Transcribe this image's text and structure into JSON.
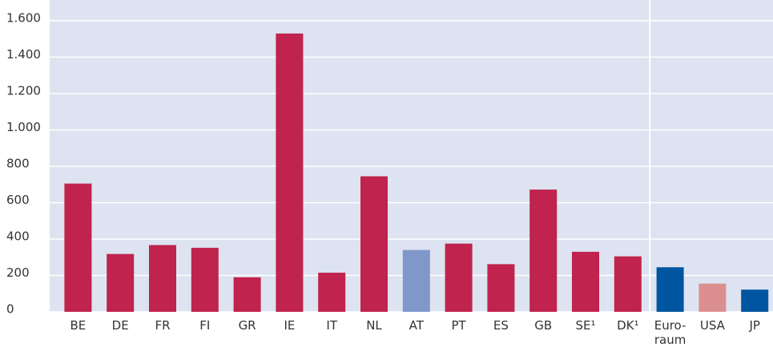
{
  "chart_data": {
    "type": "bar",
    "categories": [
      "BE",
      "DE",
      "FR",
      "FI",
      "GR",
      "IE",
      "IT",
      "NL",
      "AT",
      "PT",
      "ES",
      "GB",
      "SE¹",
      "DK¹",
      "Euro-\nraum",
      "USA",
      "JP"
    ],
    "values": [
      705,
      318,
      367,
      352,
      190,
      1530,
      215,
      745,
      340,
      375,
      262,
      672,
      330,
      305,
      245,
      155,
      122
    ],
    "colors": [
      "#c0234d",
      "#c0234d",
      "#c0234d",
      "#c0234d",
      "#c0234d",
      "#c0234d",
      "#c0234d",
      "#c0234d",
      "#7f98c9",
      "#c0234d",
      "#c0234d",
      "#c0234d",
      "#c0234d",
      "#c0234d",
      "#0055a0",
      "#dc8f90",
      "#0055a0"
    ],
    "ylim": [
      0,
      1600
    ],
    "yticks": [
      0,
      200,
      400,
      600,
      800,
      {
        "value": 1000,
        "label": "1.000"
      },
      {
        "value": 1200,
        "label": "1.200"
      },
      {
        "value": 1400,
        "label": "1.400"
      },
      {
        "value": 1600,
        "label": "1.600"
      }
    ],
    "grid": true
  }
}
